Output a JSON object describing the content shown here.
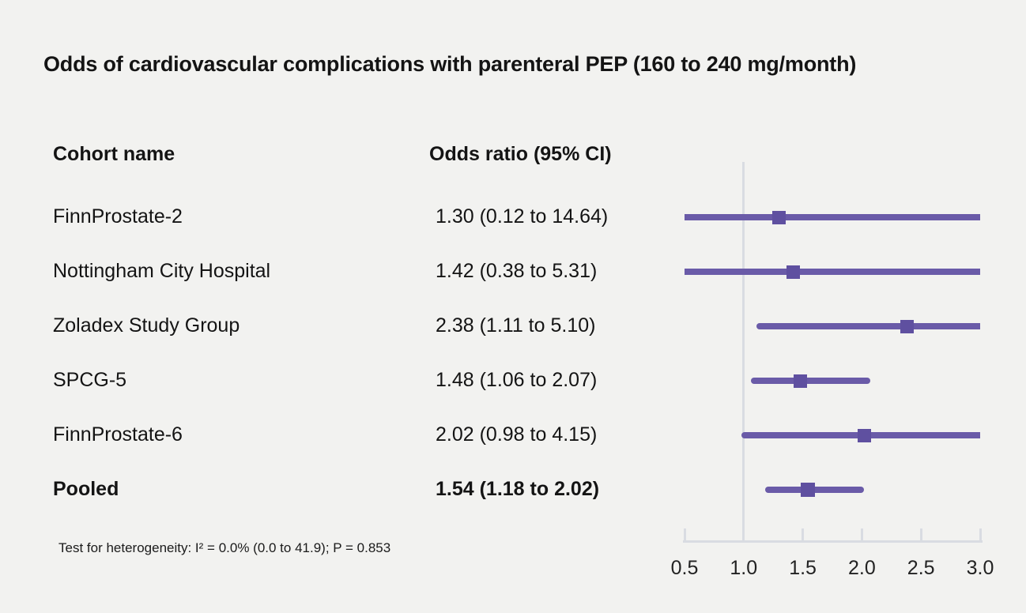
{
  "title": "Odds of cardiovascular complications with parenteral PEP (160 to 240 mg/month)",
  "columns": {
    "cohort": "Cohort name",
    "odds": "Odds ratio (95% CI)"
  },
  "footnote": "Test for heterogeneity: I² = 0.0% (0.0 to 41.9); P = 0.853",
  "colors": {
    "background": "#f2f2f0",
    "text": "#141414",
    "ci_line": "#6a5ba8",
    "marker": "#5f50a0",
    "axis": "#d9dce2"
  },
  "chart_data": {
    "type": "forest",
    "title": "Odds of cardiovascular complications with parenteral PEP (160 to 240 mg/month)",
    "xlabel": "Odds ratio",
    "xlim": [
      0.5,
      3.0
    ],
    "reference_line": 1.0,
    "x_ticks": [
      0.5,
      1.0,
      1.5,
      2.0,
      2.5,
      3.0
    ],
    "x_tick_labels": [
      "0.5",
      "1.0",
      "1.5",
      "2.0",
      "2.5",
      "3.0"
    ],
    "studies": [
      {
        "name": "FinnProstate-2",
        "or": 1.3,
        "ci_low": 0.12,
        "ci_high": 14.64,
        "or_label": "1.30 (0.12 to 14.64)",
        "pooled": false
      },
      {
        "name": "Nottingham City Hospital",
        "or": 1.42,
        "ci_low": 0.38,
        "ci_high": 5.31,
        "or_label": "1.42 (0.38 to 5.31)",
        "pooled": false
      },
      {
        "name": "Zoladex Study Group",
        "or": 2.38,
        "ci_low": 1.11,
        "ci_high": 5.1,
        "or_label": "2.38 (1.11 to 5.10)",
        "pooled": false
      },
      {
        "name": "SPCG-5",
        "or": 1.48,
        "ci_low": 1.06,
        "ci_high": 2.07,
        "or_label": "1.48 (1.06 to 2.07)",
        "pooled": false
      },
      {
        "name": "FinnProstate-6",
        "or": 2.02,
        "ci_low": 0.98,
        "ci_high": 4.15,
        "or_label": "2.02 (0.98 to 4.15)",
        "pooled": false
      },
      {
        "name": "Pooled",
        "or": 1.54,
        "ci_low": 1.18,
        "ci_high": 2.02,
        "or_label": "1.54 (1.18 to 2.02)",
        "pooled": true
      }
    ]
  }
}
